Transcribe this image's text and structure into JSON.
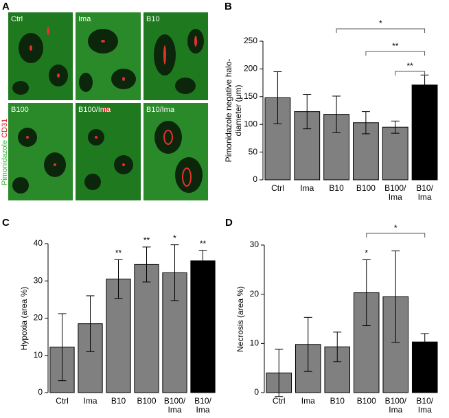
{
  "image_panel": {
    "letter": "A",
    "stain_labels": [
      "Pimonidazole",
      "CD31"
    ],
    "labels": [
      "Ctrl",
      "Ima",
      "B10",
      "B100",
      "B100/Ima",
      "B10/Ima"
    ]
  },
  "chart_data": [
    {
      "type": "bar",
      "letter": "B",
      "ylabel": "Pimonidazole negative halo-\ndiameter (μm)",
      "categories": [
        "Ctrl",
        "Ima",
        "B10",
        "B100",
        "B100/\nIma",
        "B10/\nIma"
      ],
      "values": [
        148,
        123,
        118,
        103,
        95,
        171
      ],
      "errors": [
        47,
        31,
        33,
        20,
        11,
        18
      ],
      "colors": [
        "#808080",
        "#808080",
        "#808080",
        "#808080",
        "#808080",
        "#000000"
      ],
      "ylim": [
        0,
        250
      ],
      "yticks": [
        0,
        50,
        100,
        150,
        200,
        250
      ],
      "brackets": [
        {
          "from": "B10",
          "to": "B10/\nIma",
          "label": "*"
        },
        {
          "from": "B100",
          "to": "B10/\nIma",
          "label": "**"
        },
        {
          "from": "B100/\nIma",
          "to": "B10/\nIma",
          "label": "**"
        }
      ]
    },
    {
      "type": "bar",
      "letter": "C",
      "ylabel": "Hypoxia (area %)",
      "categories": [
        "Ctrl",
        "Ima",
        "B10",
        "B100",
        "B100/\nIma",
        "B10/\nIma"
      ],
      "values": [
        12.2,
        18.5,
        30.5,
        34.4,
        32.2,
        35.4
      ],
      "errors": [
        9,
        7.5,
        5.2,
        4.7,
        7.5,
        2.8
      ],
      "colors": [
        "#808080",
        "#808080",
        "#808080",
        "#808080",
        "#808080",
        "#000000"
      ],
      "ylim": [
        0,
        40
      ],
      "yticks": [
        0,
        10,
        20,
        30,
        40
      ],
      "star_labels": [
        null,
        null,
        "**",
        "**",
        "*",
        "**"
      ]
    },
    {
      "type": "bar",
      "letter": "D",
      "ylabel": "Necrosis (area %)",
      "categories": [
        "Ctrl",
        "Ima",
        "B10",
        "B100",
        "B100/\nIma",
        "B10/\nIma"
      ],
      "values": [
        4.0,
        9.8,
        9.3,
        20.3,
        19.5,
        10.3
      ],
      "errors": [
        4.8,
        5.5,
        3,
        6.7,
        9.3,
        1.7
      ],
      "colors": [
        "#808080",
        "#808080",
        "#808080",
        "#808080",
        "#808080",
        "#000000"
      ],
      "ylim": [
        0,
        30
      ],
      "yticks": [
        0,
        10,
        20,
        30
      ],
      "star_labels": [
        null,
        null,
        null,
        "*",
        null,
        null
      ],
      "brackets": [
        {
          "from": "B100",
          "to": "B10/\nIma",
          "label": "*"
        }
      ]
    }
  ]
}
